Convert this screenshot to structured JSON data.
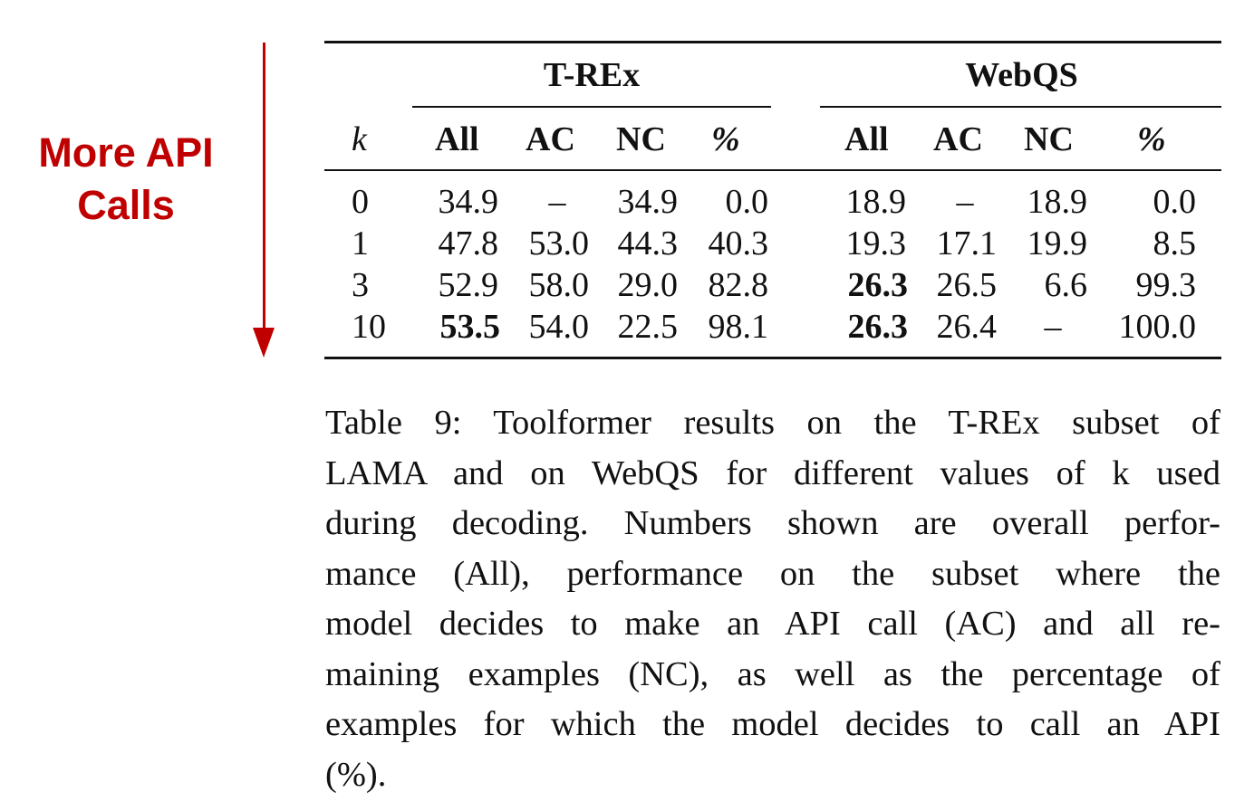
{
  "annotation": {
    "label_line1": "More API",
    "label_line2": "Calls",
    "color": "#c00000",
    "arrow_direction": "down"
  },
  "table": {
    "groups": [
      "T-REx",
      "WebQS"
    ],
    "k_header": "k",
    "columns": [
      "All",
      "AC",
      "NC",
      "%"
    ],
    "rows": [
      {
        "k": "0",
        "trex": [
          "34.9",
          "–",
          "34.9",
          "0.0"
        ],
        "webqs": [
          "18.9",
          "–",
          "18.9",
          "0.0"
        ]
      },
      {
        "k": "1",
        "trex": [
          "47.8",
          "53.0",
          "44.3",
          "40.3"
        ],
        "webqs": [
          "19.3",
          "17.1",
          "19.9",
          "8.5"
        ]
      },
      {
        "k": "3",
        "trex": [
          "52.9",
          "58.0",
          "29.0",
          "82.8"
        ],
        "webqs": [
          "26.3",
          "26.5",
          "6.6",
          "99.3"
        ]
      },
      {
        "k": "10",
        "trex": [
          "53.5",
          "54.0",
          "22.5",
          "98.1"
        ],
        "webqs": [
          "26.3",
          "26.4",
          "–",
          "100.0"
        ]
      }
    ],
    "bold_cells": [
      "trex.3.0",
      "webqs.2.0",
      "webqs.3.0"
    ]
  },
  "caption": {
    "lines": [
      "Table 9: Toolformer results on the T-REx subset of",
      "LAMA and on WebQS for different values of k used",
      "during decoding. Numbers shown are overall perfor-",
      "mance (All), performance on the subset where the",
      "model decides to make an API call (AC) and all re-",
      "maining examples (NC), as well as the percentage of",
      "examples for which the model decides to call an API",
      "(%)."
    ]
  }
}
